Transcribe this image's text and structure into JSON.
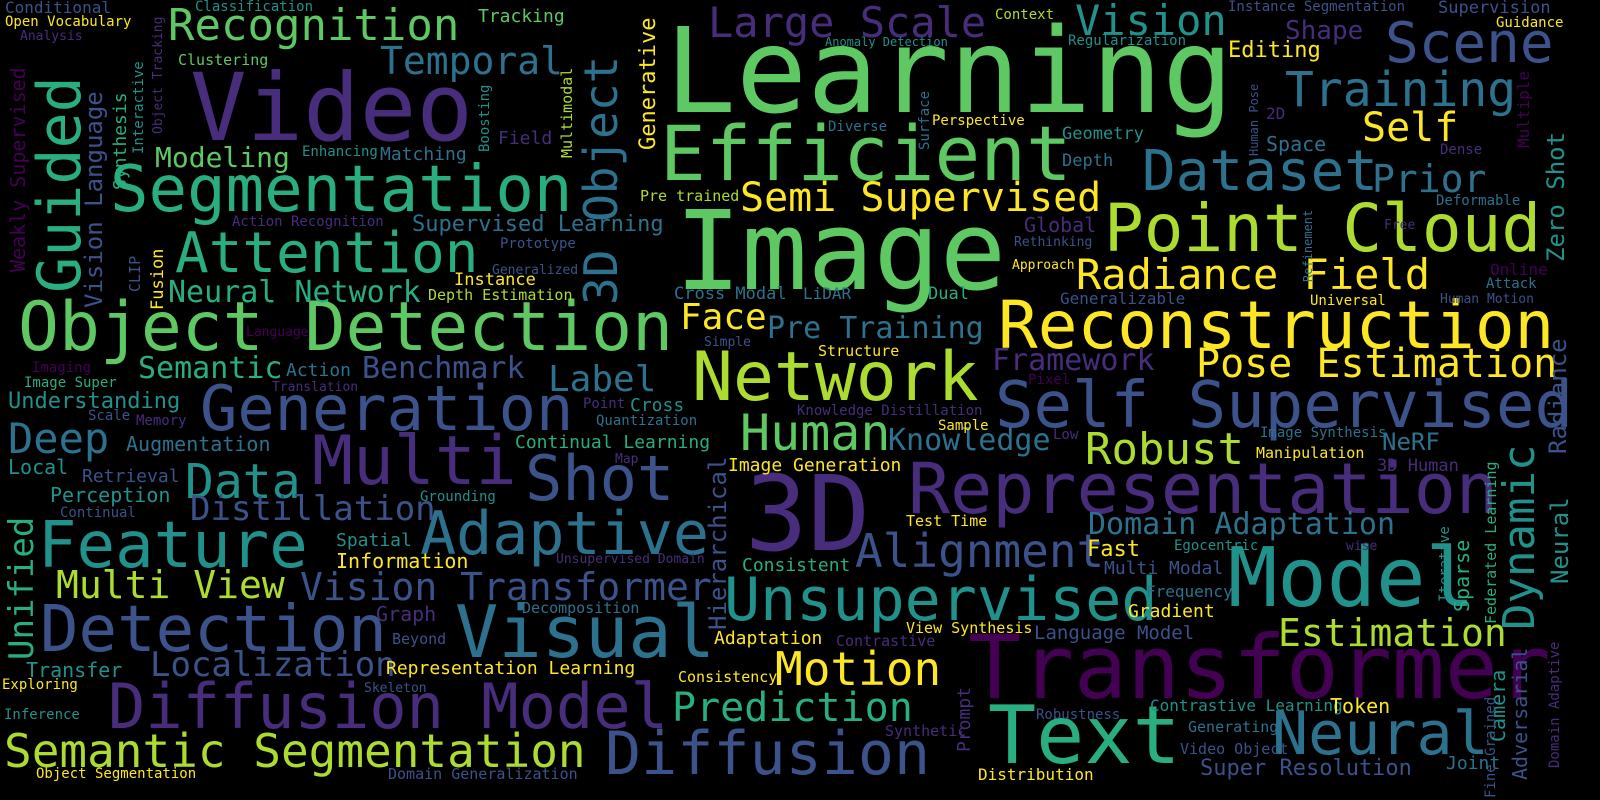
{
  "background": "#000000",
  "palette": {
    "purple": "#440154",
    "indigo": "#472d7b",
    "blue": "#3b528b",
    "steel": "#2c728e",
    "teal": "#21918c",
    "green": "#28ae80",
    "lime": "#5ec962",
    "chartreuse": "#addc30",
    "yellow": "#fde725"
  },
  "words": [
    {
      "text": "Learning",
      "color": "#5ec962"
    },
    {
      "text": "Image",
      "color": "#5ec962"
    },
    {
      "text": "Video",
      "color": "#472d7b"
    },
    {
      "text": "Efficient",
      "color": "#5ec962"
    },
    {
      "text": "Segmentation",
      "color": "#28ae80"
    },
    {
      "text": "Object Detection",
      "color": "#5ec962"
    },
    {
      "text": "Recognition",
      "color": "#5ec962"
    },
    {
      "text": "Attention",
      "color": "#28ae80"
    },
    {
      "text": "Guided",
      "color": "#28ae80"
    },
    {
      "text": "Generation",
      "color": "#3b528b"
    },
    {
      "text": "Multi",
      "color": "#472d7b"
    },
    {
      "text": "Shot",
      "color": "#3b528b"
    },
    {
      "text": "Feature",
      "color": "#21918c"
    },
    {
      "text": "Detection",
      "color": "#3b528b"
    },
    {
      "text": "Visual",
      "color": "#2c728e"
    },
    {
      "text": "Diffusion Model",
      "color": "#472d7b"
    },
    {
      "text": "Semantic Segmentation",
      "color": "#addc30"
    },
    {
      "text": "Diffusion",
      "color": "#3b528b"
    },
    {
      "text": "3D",
      "color": "#472d7b"
    },
    {
      "text": "Network",
      "color": "#addc30"
    },
    {
      "text": "Reconstruction",
      "color": "#fde725"
    },
    {
      "text": "Representation",
      "color": "#472d7b"
    },
    {
      "text": "Transformer",
      "color": "#440154"
    },
    {
      "text": "Text",
      "color": "#28ae80"
    },
    {
      "text": "Model",
      "color": "#21918c"
    },
    {
      "text": "Point Cloud",
      "color": "#addc30"
    },
    {
      "text": "Self Supervised",
      "color": "#3b528b"
    },
    {
      "text": "Unsupervised",
      "color": "#21918c"
    },
    {
      "text": "Adaptive",
      "color": "#2c728e"
    },
    {
      "text": "Scene",
      "color": "#3b528b"
    },
    {
      "text": "Dataset",
      "color": "#2c728e"
    },
    {
      "text": "Training",
      "color": "#2c728e"
    },
    {
      "text": "Radiance Field",
      "color": "#fde725"
    },
    {
      "text": "Semi Supervised",
      "color": "#fde725"
    },
    {
      "text": "Large Scale",
      "color": "#472d7b"
    },
    {
      "text": "Vision",
      "color": "#21918c"
    },
    {
      "text": "Self",
      "color": "#fde725"
    },
    {
      "text": "Prior",
      "color": "#2c728e"
    },
    {
      "text": "Pose Estimation",
      "color": "#fde725"
    },
    {
      "text": "Robust",
      "color": "#addc30"
    },
    {
      "text": "Human",
      "color": "#5ec962"
    },
    {
      "text": "Alignment",
      "color": "#3b528b"
    },
    {
      "text": "Neural",
      "color": "#2c728e"
    },
    {
      "text": "Motion",
      "color": "#fde725"
    },
    {
      "text": "Prediction",
      "color": "#28ae80"
    },
    {
      "text": "Estimation",
      "color": "#addc30"
    },
    {
      "text": "Data",
      "color": "#21918c"
    },
    {
      "text": "Multi View",
      "color": "#addc30"
    },
    {
      "text": "Vision Transformer",
      "color": "#3b528b"
    },
    {
      "text": "Localization",
      "color": "#3b528b"
    },
    {
      "text": "Deep",
      "color": "#2c728e"
    },
    {
      "text": "Distillation",
      "color": "#3b528b"
    },
    {
      "text": "Neural Network",
      "color": "#28ae80"
    },
    {
      "text": "Temporal",
      "color": "#2c728e"
    },
    {
      "text": "Modeling",
      "color": "#5ec962"
    },
    {
      "text": "Semantic",
      "color": "#28ae80"
    },
    {
      "text": "Benchmark",
      "color": "#3b528b"
    },
    {
      "text": "Label",
      "color": "#2c728e"
    },
    {
      "text": "Face",
      "color": "#fde725"
    },
    {
      "text": "Pre Training",
      "color": "#2c728e"
    },
    {
      "text": "Knowledge",
      "color": "#2c728e"
    },
    {
      "text": "Framework",
      "color": "#472d7b"
    },
    {
      "text": "Domain Adaptation",
      "color": "#2c728e"
    },
    {
      "text": "Dynamic",
      "color": "#21918c"
    },
    {
      "text": "Editing",
      "color": "#fde725"
    },
    {
      "text": "Shape",
      "color": "#472d7b"
    },
    {
      "text": "Conditional",
      "color": "#3b528b"
    },
    {
      "text": "Open Vocabulary",
      "color": "#fde725"
    },
    {
      "text": "Analysis",
      "color": "#472d7b"
    },
    {
      "text": "Classification",
      "color": "#21918c"
    },
    {
      "text": "Tracking",
      "color": "#5ec962"
    },
    {
      "text": "Context",
      "color": "#addc30"
    },
    {
      "text": "Instance Segmentation",
      "color": "#3b528b"
    },
    {
      "text": "Supervision",
      "color": "#3b528b"
    },
    {
      "text": "Guidance",
      "color": "#fde725"
    },
    {
      "text": "Clustering",
      "color": "#5ec962"
    },
    {
      "text": "Anomaly Detection",
      "color": "#21918c"
    },
    {
      "text": "Regularization",
      "color": "#21918c"
    },
    {
      "text": "Generative",
      "color": "#fde725"
    },
    {
      "text": "3D Object",
      "color": "#2c728e"
    },
    {
      "text": "Multimodal",
      "color": "#addc30"
    },
    {
      "text": "Boosting",
      "color": "#21918c"
    },
    {
      "text": "Field",
      "color": "#472d7b"
    },
    {
      "text": "Synthesis",
      "color": "#28ae80"
    },
    {
      "text": "Interactive",
      "color": "#21918c"
    },
    {
      "text": "Object Tracking",
      "color": "#472d7b"
    },
    {
      "text": "Weakly Supervised",
      "color": "#440154"
    },
    {
      "text": "Vision Language",
      "color": "#3b528b"
    },
    {
      "text": "Enhancing",
      "color": "#21918c"
    },
    {
      "text": "Matching",
      "color": "#2c728e"
    },
    {
      "text": "Supervised Learning",
      "color": "#2c728e"
    },
    {
      "text": "Action Recognition",
      "color": "#472d7b"
    },
    {
      "text": "Prototype",
      "color": "#3b528b"
    },
    {
      "text": "Generalized",
      "color": "#3b528b"
    },
    {
      "text": "Instance",
      "color": "#fde725"
    },
    {
      "text": "Depth Estimation",
      "color": "#addc30"
    },
    {
      "text": "CLIP",
      "color": "#3b528b"
    },
    {
      "text": "Fusion",
      "color": "#fde725"
    },
    {
      "text": "Diverse",
      "color": "#2c728e"
    },
    {
      "text": "Surface",
      "color": "#2c728e"
    },
    {
      "text": "Perspective",
      "color": "#fde725"
    },
    {
      "text": "Pre trained",
      "color": "#addc30"
    },
    {
      "text": "Geometry",
      "color": "#21918c"
    },
    {
      "text": "Depth",
      "color": "#2c728e"
    },
    {
      "text": "Global",
      "color": "#472d7b"
    },
    {
      "text": "Rethinking",
      "color": "#3b528b"
    },
    {
      "text": "Approach",
      "color": "#fde725"
    },
    {
      "text": "Cross Modal",
      "color": "#2c728e"
    },
    {
      "text": "LiDAR",
      "color": "#2c728e"
    },
    {
      "text": "Dual",
      "color": "#28ae80"
    },
    {
      "text": "Generalizable",
      "color": "#3b528b"
    },
    {
      "text": "Human Pose",
      "color": "#3b528b"
    },
    {
      "text": "2D",
      "color": "#472d7b"
    },
    {
      "text": "Space",
      "color": "#2c728e"
    },
    {
      "text": "Dense",
      "color": "#472d7b"
    },
    {
      "text": "Multiple",
      "color": "#440154"
    },
    {
      "text": "Zero Shot",
      "color": "#21918c"
    },
    {
      "text": "Deformable",
      "color": "#2c728e"
    },
    {
      "text": "Free",
      "color": "#472d7b"
    },
    {
      "text": "Refinement",
      "color": "#2c728e"
    },
    {
      "text": "Online",
      "color": "#440154"
    },
    {
      "text": "Attack",
      "color": "#2c728e"
    },
    {
      "text": "Universal",
      "color": "#fde725"
    },
    {
      "text": "Human Motion",
      "color": "#3b528b"
    },
    {
      "text": "Radiance",
      "color": "#3b528b"
    },
    {
      "text": "Neural",
      "color": "#21918c"
    },
    {
      "text": "Language",
      "color": "#440154"
    },
    {
      "text": "Imaging",
      "color": "#440154"
    },
    {
      "text": "Image Super",
      "color": "#28ae80"
    },
    {
      "text": "Action",
      "color": "#2c728e"
    },
    {
      "text": "Translation",
      "color": "#472d7b"
    },
    {
      "text": "Understanding",
      "color": "#21918c"
    },
    {
      "text": "Scale",
      "color": "#3b528b"
    },
    {
      "text": "Memory",
      "color": "#472d7b"
    },
    {
      "text": "Augmentation",
      "color": "#2c728e"
    },
    {
      "text": "Local",
      "color": "#21918c"
    },
    {
      "text": "Retrieval",
      "color": "#3b528b"
    },
    {
      "text": "Perception",
      "color": "#21918c"
    },
    {
      "text": "Continual",
      "color": "#3b528b"
    },
    {
      "text": "Unified",
      "color": "#28ae80"
    },
    {
      "text": "Simple",
      "color": "#3b528b"
    },
    {
      "text": "Structure",
      "color": "#fde725"
    },
    {
      "text": "Pixel",
      "color": "#440154"
    },
    {
      "text": "Point",
      "color": "#472d7b"
    },
    {
      "text": "Cross",
      "color": "#21918c"
    },
    {
      "text": "Quantization",
      "color": "#2c728e"
    },
    {
      "text": "Continual Learning",
      "color": "#28ae80"
    },
    {
      "text": "Map",
      "color": "#472d7b"
    },
    {
      "text": "Hierarchical",
      "color": "#3b528b"
    },
    {
      "text": "Knowledge Distillation",
      "color": "#472d7b"
    },
    {
      "text": "Sample",
      "color": "#fde725"
    },
    {
      "text": "Low",
      "color": "#472d7b"
    },
    {
      "text": "Image Synthesis",
      "color": "#2c728e"
    },
    {
      "text": "NeRF",
      "color": "#2c728e"
    },
    {
      "text": "Manipulation",
      "color": "#fde725"
    },
    {
      "text": "3D Human",
      "color": "#472d7b"
    },
    {
      "text": "Image Generation",
      "color": "#fde725"
    },
    {
      "text": "Grounding",
      "color": "#21918c"
    },
    {
      "text": "Test Time",
      "color": "#fde725"
    },
    {
      "text": "Fast",
      "color": "#fde725"
    },
    {
      "text": "Egocentric",
      "color": "#21918c"
    },
    {
      "text": "Spatial",
      "color": "#21918c"
    },
    {
      "text": "Information",
      "color": "#fde725"
    },
    {
      "text": "Unsupervised Domain",
      "color": "#472d7b"
    },
    {
      "text": "Consistent",
      "color": "#28ae80"
    },
    {
      "text": "Multi Modal",
      "color": "#3b528b"
    },
    {
      "text": "wise",
      "color": "#472d7b"
    },
    {
      "text": "Iterative",
      "color": "#21918c"
    },
    {
      "text": "Sparse",
      "color": "#28ae80"
    },
    {
      "text": "Federated Learning",
      "color": "#28ae80"
    },
    {
      "text": "Frequency",
      "color": "#2c728e"
    },
    {
      "text": "Gradient",
      "color": "#fde725"
    },
    {
      "text": "Graph",
      "color": "#472d7b"
    },
    {
      "text": "Decomposition",
      "color": "#2c728e"
    },
    {
      "text": "Beyond",
      "color": "#3b528b"
    },
    {
      "text": "Adaptation",
      "color": "#fde725"
    },
    {
      "text": "Contrastive",
      "color": "#472d7b"
    },
    {
      "text": "View Synthesis",
      "color": "#fde725"
    },
    {
      "text": "Language Model",
      "color": "#3b528b"
    },
    {
      "text": "Transfer",
      "color": "#21918c"
    },
    {
      "text": "Exploring",
      "color": "#fde725"
    },
    {
      "text": "Representation Learning",
      "color": "#fde725"
    },
    {
      "text": "Skeleton",
      "color": "#3b528b"
    },
    {
      "text": "Consistency",
      "color": "#fde725"
    },
    {
      "text": "Prompt",
      "color": "#472d7b"
    },
    {
      "text": "Camera",
      "color": "#21918c"
    },
    {
      "text": "Adversarial",
      "color": "#3b528b"
    },
    {
      "text": "Fine Grained",
      "color": "#3b528b"
    },
    {
      "text": "Domain Adaptive",
      "color": "#472d7b"
    },
    {
      "text": "Inference",
      "color": "#21918c"
    },
    {
      "text": "Robustness",
      "color": "#3b528b"
    },
    {
      "text": "Contrastive Learning",
      "color": "#21918c"
    },
    {
      "text": "Token",
      "color": "#fde725"
    },
    {
      "text": "Generating",
      "color": "#2c728e"
    },
    {
      "text": "Synthetic",
      "color": "#472d7b"
    },
    {
      "text": "Video Object",
      "color": "#3b528b"
    },
    {
      "text": "Super Resolution",
      "color": "#3b528b"
    },
    {
      "text": "Joint",
      "color": "#2c728e"
    },
    {
      "text": "Object Segmentation",
      "color": "#fde725"
    },
    {
      "text": "Domain Generalization",
      "color": "#3b528b"
    },
    {
      "text": "Distribution",
      "color": "#fde725"
    }
  ]
}
